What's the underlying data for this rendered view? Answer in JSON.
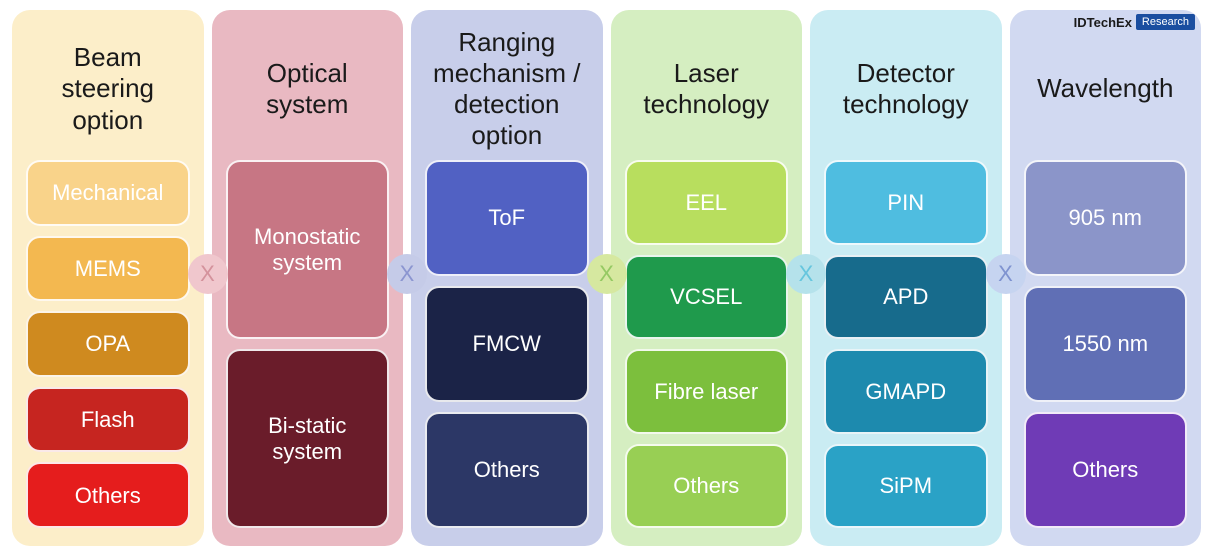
{
  "branding": {
    "brand": "IDTechEx",
    "tag": "Research"
  },
  "multiplier_symbol": "X",
  "multiplier_colors": [
    {
      "bg": "#f0c7cd",
      "fg": "#d4929c"
    },
    {
      "bg": "#c5cbe8",
      "fg": "#8b95d0"
    },
    {
      "bg": "#d6e8a0",
      "fg": "#95c963"
    },
    {
      "bg": "#b5e2eb",
      "fg": "#66c6de"
    },
    {
      "bg": "#c6d4f0",
      "fg": "#7f93d0"
    }
  ],
  "columns": [
    {
      "title": "Beam steering option",
      "bg": "#fceec9",
      "title_fontsize": 26,
      "items": [
        {
          "label": "Mechanical",
          "color": "#f9d38a"
        },
        {
          "label": "MEMS",
          "color": "#f3b850"
        },
        {
          "label": "OPA",
          "color": "#cf8a1f"
        },
        {
          "label": "Flash",
          "color": "#c62520"
        },
        {
          "label": "Others",
          "color": "#e51d1d"
        }
      ]
    },
    {
      "title": "Optical system",
      "bg": "#e9b9c2",
      "title_fontsize": 26,
      "items": [
        {
          "label": "Monostatic system",
          "color": "#c77684"
        },
        {
          "label": "Bi-static system",
          "color": "#6a1c2a"
        }
      ]
    },
    {
      "title": "Ranging mechanism / detection option",
      "bg": "#c8ceea",
      "title_fontsize": 26,
      "items": [
        {
          "label": "ToF",
          "color": "#5161c3"
        },
        {
          "label": "FMCW",
          "color": "#1b2347"
        },
        {
          "label": "Others",
          "color": "#2c3766"
        }
      ]
    },
    {
      "title": "Laser technology",
      "bg": "#d5eec1",
      "title_fontsize": 26,
      "items": [
        {
          "label": "EEL",
          "color": "#b8de5e"
        },
        {
          "label": "VCSEL",
          "color": "#1f9a4c"
        },
        {
          "label": "Fibre laser",
          "color": "#7cbf3d"
        },
        {
          "label": "Others",
          "color": "#98cf54"
        }
      ]
    },
    {
      "title": "Detector technology",
      "bg": "#caecf3",
      "title_fontsize": 26,
      "items": [
        {
          "label": "PIN",
          "color": "#4fbde0"
        },
        {
          "label": "APD",
          "color": "#176b8c"
        },
        {
          "label": "GMAPD",
          "color": "#1d8aae"
        },
        {
          "label": "SiPM",
          "color": "#2aa2c6"
        }
      ]
    },
    {
      "title": "Wavelength",
      "bg": "#d1d9f1",
      "title_fontsize": 26,
      "items": [
        {
          "label": "905 nm",
          "color": "#8b95c9"
        },
        {
          "label": "1550 nm",
          "color": "#606fb5"
        },
        {
          "label": "Others",
          "color": "#6f3bb6"
        }
      ]
    }
  ]
}
